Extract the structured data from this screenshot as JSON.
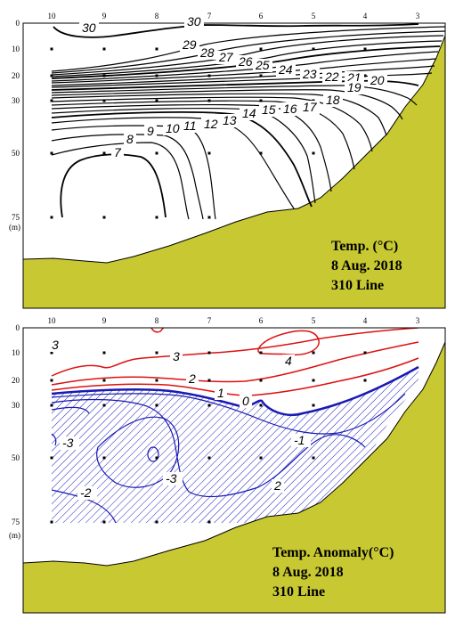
{
  "colors": {
    "terrain": "#c8c832",
    "contour": "#000000",
    "positive_anomaly": "#dd1111",
    "negative_anomaly": "#1a1ab4",
    "hatch": "#2020c0"
  },
  "chart_data": [
    {
      "type": "contour",
      "title_lines": [
        "Temp. (°C)",
        "8 Aug. 2018",
        "310 Line"
      ],
      "stations": [
        "10",
        "9",
        "8",
        "7",
        "6",
        "5",
        "4",
        "3"
      ],
      "depth_ticks": [
        "0",
        "10",
        "20",
        "30",
        "50",
        "75"
      ],
      "depth_unit": "(m)",
      "contour_levels": [
        7,
        8,
        9,
        10,
        11,
        12,
        13,
        14,
        15,
        16,
        17,
        18,
        19,
        20,
        21,
        22,
        23,
        24,
        25,
        26,
        27,
        28,
        29,
        30
      ],
      "labels": [
        "30",
        "30",
        "29",
        "28",
        "27",
        "26",
        "25",
        "24",
        "23",
        "22",
        "21",
        "20",
        "19",
        "18",
        "17",
        "16",
        "15",
        "14",
        "13",
        "12",
        "11",
        "10",
        "9",
        "8",
        "7"
      ]
    },
    {
      "type": "contour",
      "title_lines": [
        "Temp.  Anomaly(°C)",
        "8 Aug. 2018",
        "310 Line"
      ],
      "stations": [
        "10",
        "9",
        "8",
        "7",
        "6",
        "5",
        "4",
        "3"
      ],
      "depth_ticks": [
        "0",
        "10",
        "20",
        "30",
        "50",
        "75"
      ],
      "depth_unit": "(m)",
      "contour_levels": [
        -3,
        -2,
        -1,
        0,
        1,
        2,
        3,
        4
      ],
      "negative_region_hatched": true,
      "labels": [
        "3",
        "3",
        "4",
        "2",
        "1",
        "0",
        "-1",
        "-3",
        "-3",
        "-2",
        "2"
      ]
    }
  ]
}
